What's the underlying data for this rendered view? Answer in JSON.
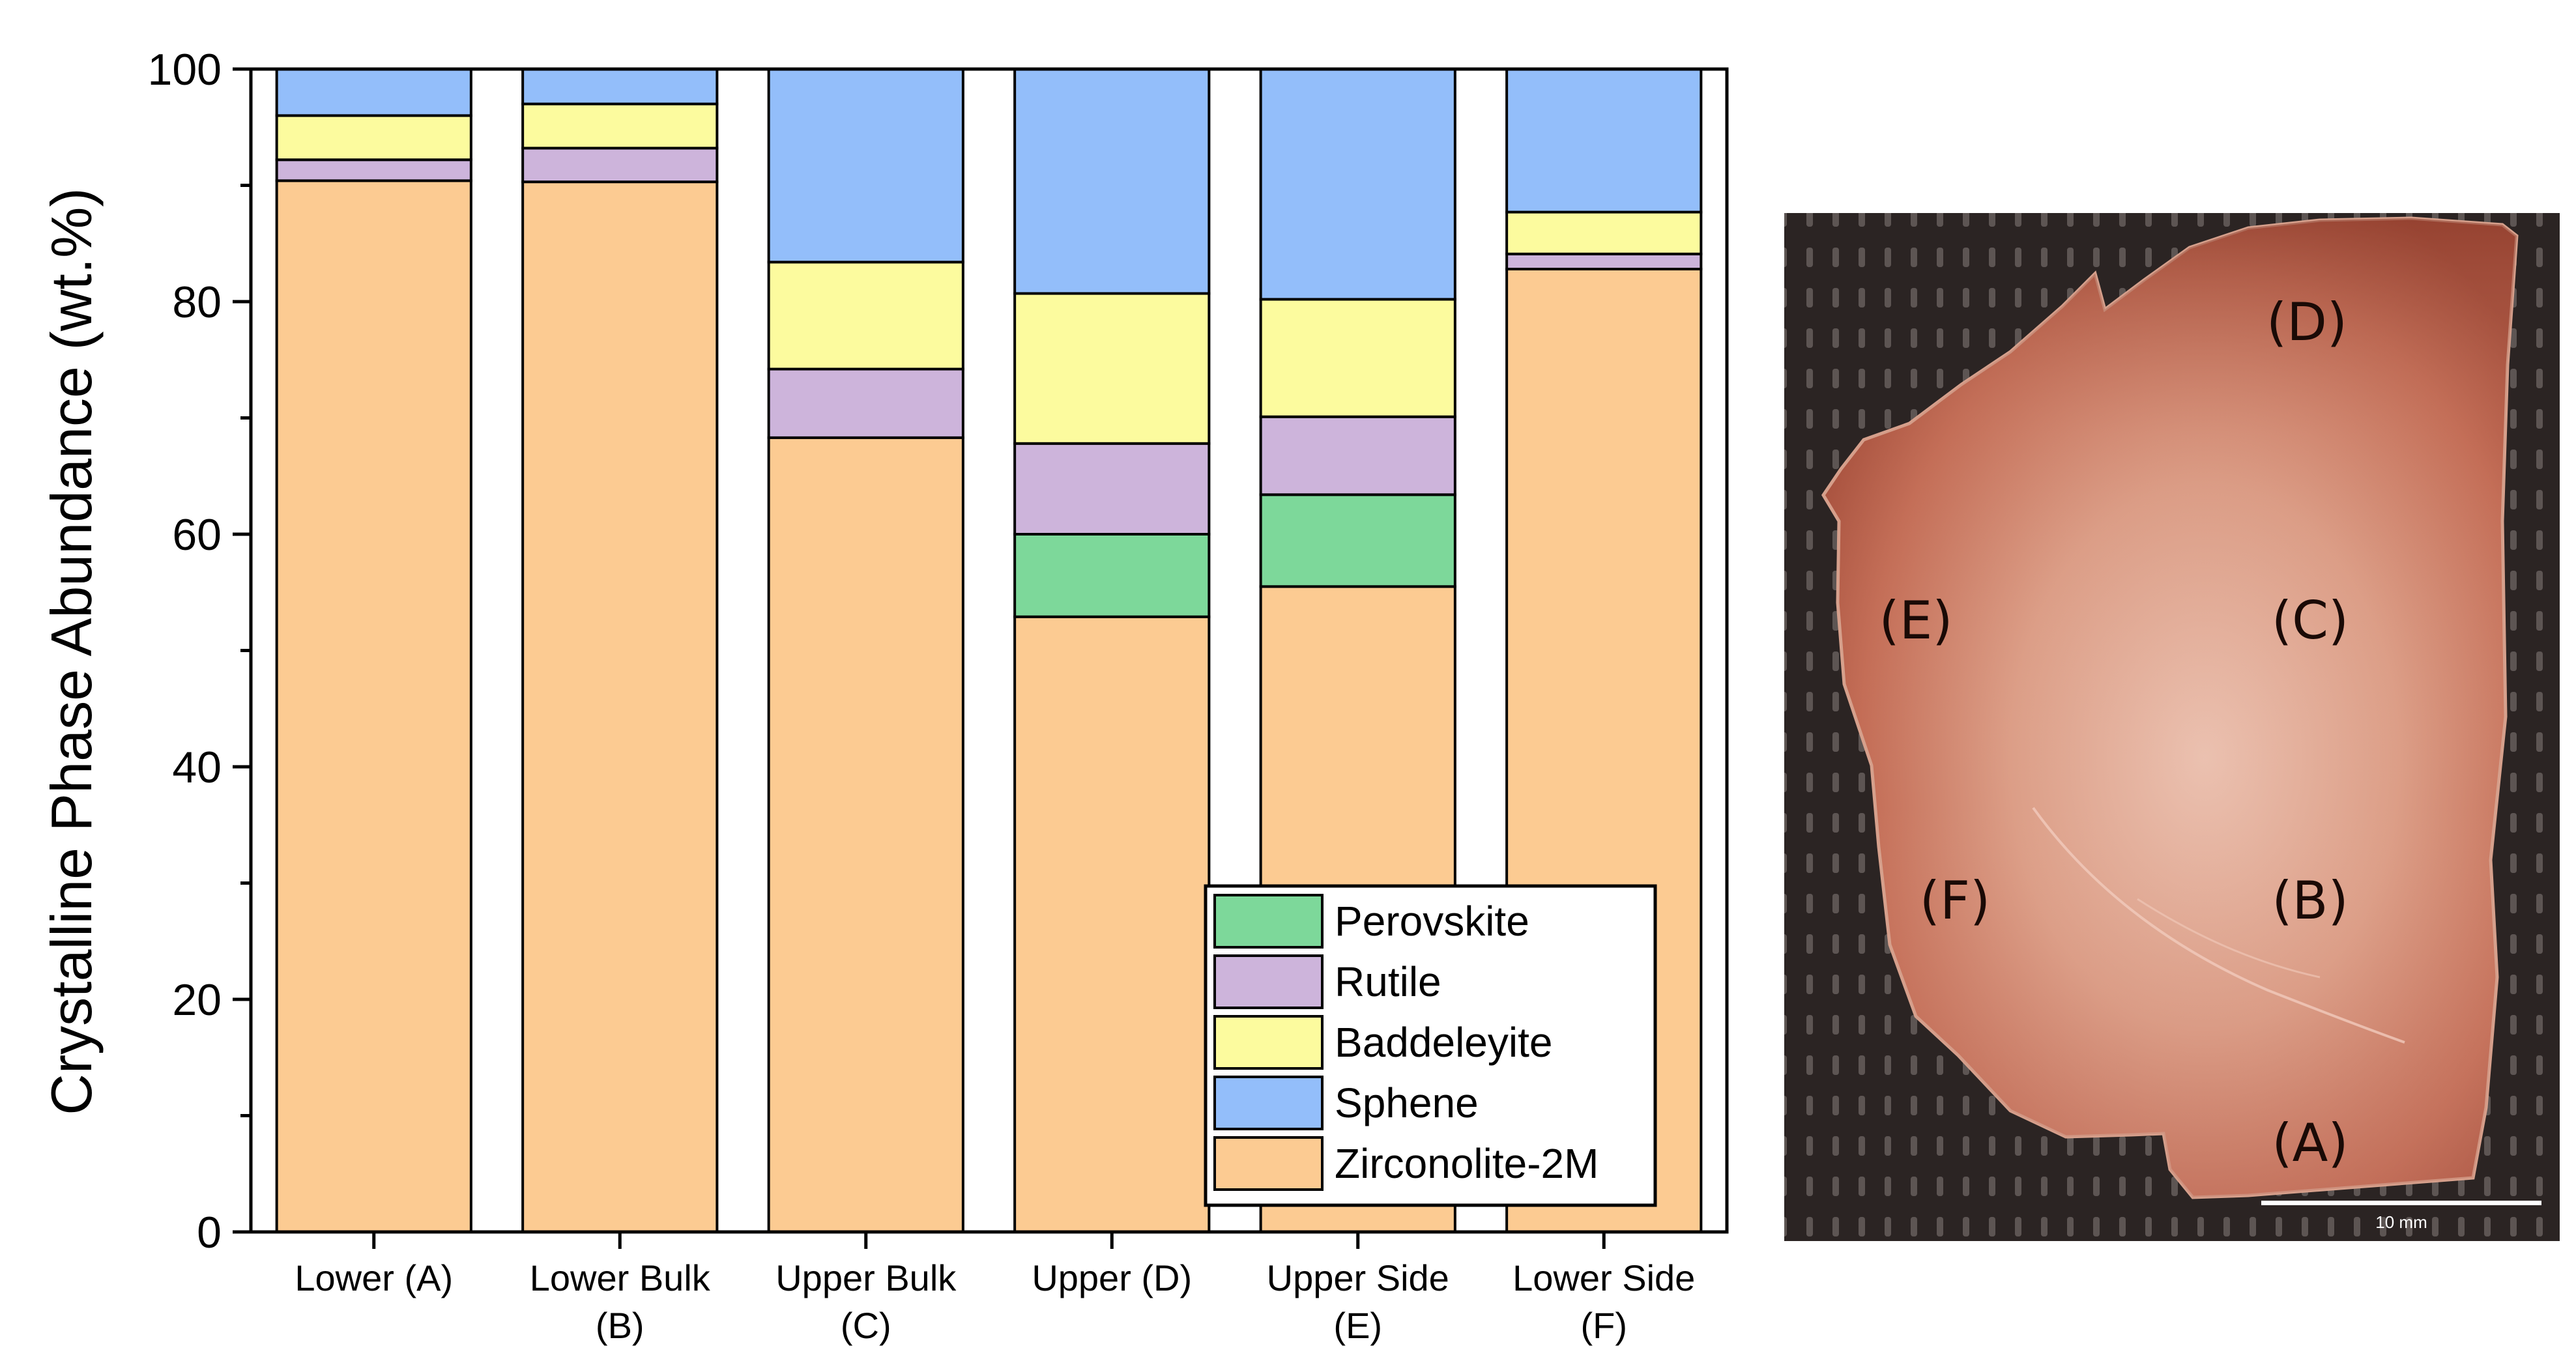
{
  "chart_data": {
    "type": "bar",
    "stacked": true,
    "title": "",
    "xlabel": "",
    "ylabel": "Crystalline Phase Abundance (wt.%)",
    "ylim": [
      0,
      100
    ],
    "yticks": [
      "0",
      "20",
      "40",
      "60",
      "80",
      "100"
    ],
    "categories": [
      [
        "Lower (A)"
      ],
      [
        "Lower Bulk",
        "(B)"
      ],
      [
        "Upper Bulk",
        "(C)"
      ],
      [
        "Upper (D)"
      ],
      [
        "Upper Side",
        "(E)"
      ],
      [
        "Lower Side",
        "(F)"
      ]
    ],
    "series": [
      {
        "name": "Zirconolite-2M",
        "color": "#FCCB92",
        "values": [
          90.4,
          90.3,
          68.3,
          52.9,
          55.5,
          82.8
        ]
      },
      {
        "name": "Perovskite",
        "color": "#7DD89A",
        "values": [
          0,
          0,
          0,
          7.1,
          7.9,
          0
        ]
      },
      {
        "name": "Rutile",
        "color": "#CDB4DB",
        "values": [
          1.8,
          2.9,
          5.9,
          7.8,
          6.7,
          1.3
        ]
      },
      {
        "name": "Baddeleyite",
        "color": "#FCFB9E",
        "values": [
          3.8,
          3.8,
          9.2,
          12.9,
          10.1,
          3.6
        ]
      },
      {
        "name": "Sphene",
        "color": "#93BEFA",
        "values": [
          4.0,
          3.0,
          16.6,
          19.3,
          19.8,
          12.3
        ]
      }
    ],
    "legend": {
      "placement": "bottom-right",
      "order": [
        "Perovskite",
        "Rutile",
        "Baddeleyite",
        "Sphene",
        "Zirconolite-2M"
      ]
    },
    "grid": false
  },
  "photo": {
    "region_labels": [
      "(D)",
      "(E)",
      "(C)",
      "(F)",
      "(B)",
      "(A)"
    ],
    "scale_bar_label": "10 mm",
    "colors": {
      "background": "#2a2322",
      "sample_edge": "#b35a46",
      "sample_center": "#e5b8a6"
    }
  }
}
